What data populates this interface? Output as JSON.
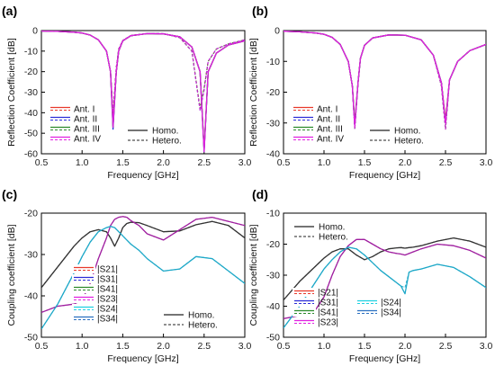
{
  "chart_data": [
    {
      "panel": "(a)",
      "type": "line",
      "xlabel": "Frequency [GHz]",
      "ylabel": "Reflection Coefficient [dB]",
      "xlim": [
        0.5,
        3.0
      ],
      "ylim": [
        -60,
        0
      ],
      "xticks": [
        "0.5",
        "1.0",
        "1.5",
        "2.0",
        "2.5",
        "3.0"
      ],
      "yticks": [
        "0",
        "-10",
        "-20",
        "-30",
        "-40",
        "-50",
        "-60"
      ],
      "legend": [
        "Ant. I",
        "Ant. II",
        "Ant. III",
        "Ant. IV"
      ],
      "style_legend": [
        "Homo.",
        "Hetero."
      ],
      "colors": [
        "#e8392a",
        "#2b2bd6",
        "#2a8a2a",
        "#e020e0"
      ],
      "x": [
        0.5,
        0.7,
        0.9,
        1.0,
        1.1,
        1.2,
        1.3,
        1.35,
        1.38,
        1.42,
        1.45,
        1.5,
        1.6,
        1.8,
        2.0,
        2.2,
        2.35,
        2.45,
        2.5,
        2.55,
        2.65,
        2.8,
        3.0
      ],
      "series": [
        {
          "name": "Ant. I",
          "homo": [
            -0.2,
            -0.4,
            -0.8,
            -1.2,
            -2.2,
            -4.5,
            -10,
            -20,
            -45,
            -20,
            -10,
            -5,
            -2.5,
            -1.5,
            -1.6,
            -3,
            -8,
            -20,
            -58,
            -20,
            -11,
            -7,
            -5
          ],
          "hetero": [
            -0.2,
            -0.4,
            -0.8,
            -1.2,
            -2.2,
            -4.5,
            -10,
            -20,
            -40,
            -18,
            -9,
            -4.8,
            -2.4,
            -1.4,
            -1.5,
            -3.4,
            -10,
            -38,
            -28,
            -15,
            -9,
            -6.5,
            -4.5
          ]
        },
        {
          "name": "Ant. II",
          "homo": [
            -0.2,
            -0.4,
            -0.8,
            -1.2,
            -2.2,
            -4.5,
            -10,
            -20,
            -48,
            -20,
            -10,
            -5,
            -2.5,
            -1.5,
            -1.6,
            -3,
            -8,
            -20,
            -59,
            -20,
            -11,
            -7,
            -5
          ],
          "hetero": [
            -0.2,
            -0.4,
            -0.8,
            -1.2,
            -2.2,
            -4.5,
            -10,
            -20,
            -41,
            -18,
            -9,
            -4.8,
            -2.4,
            -1.4,
            -1.5,
            -3.4,
            -10,
            -39,
            -29,
            -15,
            -9,
            -6.5,
            -4.5
          ]
        },
        {
          "name": "Ant. III",
          "homo": [
            -0.2,
            -0.4,
            -0.8,
            -1.2,
            -2.2,
            -4.5,
            -10,
            -20,
            -47,
            -20,
            -10,
            -5,
            -2.5,
            -1.5,
            -1.6,
            -3,
            -8,
            -20,
            -58,
            -20,
            -11,
            -7,
            -5
          ],
          "hetero": [
            -0.2,
            -0.4,
            -0.8,
            -1.2,
            -2.2,
            -4.5,
            -10,
            -20,
            -40,
            -18,
            -9,
            -4.8,
            -2.4,
            -1.4,
            -1.5,
            -3.4,
            -10,
            -38,
            -28,
            -15,
            -9,
            -6.5,
            -4.5
          ]
        },
        {
          "name": "Ant. IV",
          "homo": [
            -0.2,
            -0.4,
            -0.8,
            -1.2,
            -2.2,
            -4.5,
            -10,
            -20,
            -47,
            -20,
            -10,
            -5,
            -2.5,
            -1.5,
            -1.6,
            -3,
            -8,
            -20,
            -59,
            -20,
            -11,
            -7,
            -5
          ],
          "hetero": [
            -0.2,
            -0.4,
            -0.8,
            -1.2,
            -2.2,
            -4.5,
            -10,
            -20,
            -41,
            -18,
            -9,
            -4.8,
            -2.4,
            -1.4,
            -1.5,
            -3.4,
            -10,
            -39,
            -29,
            -15,
            -9,
            -6.5,
            -4.5
          ]
        }
      ]
    },
    {
      "panel": "(b)",
      "type": "line",
      "xlabel": "Frequency [GHz]",
      "ylabel": "Reflection Coefficient [dB]",
      "xlim": [
        0.5,
        3.0
      ],
      "ylim": [
        -40,
        0
      ],
      "xticks": [
        "0.5",
        "1.0",
        "1.5",
        "2.0",
        "2.5",
        "3.0"
      ],
      "yticks": [
        "0",
        "-10",
        "-20",
        "-30",
        "-40"
      ],
      "legend": [
        "Ant. I",
        "Ant. II",
        "Ant. III",
        "Ant. IV"
      ],
      "style_legend": [
        "Homo.",
        "Hetero."
      ],
      "colors": [
        "#e8392a",
        "#2b2bd6",
        "#2a8a2a",
        "#e020e0"
      ],
      "x": [
        0.5,
        0.7,
        0.9,
        1.0,
        1.1,
        1.2,
        1.3,
        1.35,
        1.38,
        1.42,
        1.45,
        1.5,
        1.6,
        1.8,
        2.0,
        2.2,
        2.35,
        2.45,
        2.5,
        2.55,
        2.65,
        2.8,
        3.0
      ],
      "series": [
        {
          "name": "Ant. I",
          "homo": [
            -0.2,
            -0.4,
            -0.8,
            -1.2,
            -2.2,
            -4.5,
            -10,
            -18,
            -30,
            -17,
            -9,
            -4.8,
            -2.4,
            -1.4,
            -1.5,
            -3,
            -8,
            -17,
            -29,
            -16,
            -10,
            -6.5,
            -4.5
          ],
          "hetero": [
            -0.2,
            -0.4,
            -0.8,
            -1.2,
            -2.2,
            -4.5,
            -10,
            -18,
            -32,
            -17,
            -9,
            -4.8,
            -2.4,
            -1.4,
            -1.5,
            -3,
            -8,
            -18,
            -32,
            -16,
            -10,
            -6.5,
            -4.5
          ]
        },
        {
          "name": "Ant. II",
          "homo": [
            -0.2,
            -0.4,
            -0.8,
            -1.2,
            -2.2,
            -4.5,
            -10,
            -18,
            -31,
            -17,
            -9,
            -4.8,
            -2.4,
            -1.4,
            -1.5,
            -3,
            -8,
            -17,
            -30,
            -16,
            -10,
            -6.5,
            -4.5
          ],
          "hetero": [
            -0.2,
            -0.4,
            -0.8,
            -1.2,
            -2.2,
            -4.5,
            -10,
            -18,
            -32,
            -17,
            -9,
            -4.8,
            -2.4,
            -1.4,
            -1.5,
            -3,
            -8,
            -18,
            -32,
            -16,
            -10,
            -6.5,
            -4.5
          ]
        },
        {
          "name": "Ant. III",
          "homo": [
            -0.2,
            -0.4,
            -0.8,
            -1.2,
            -2.2,
            -4.5,
            -10,
            -18,
            -30,
            -17,
            -9,
            -4.8,
            -2.4,
            -1.4,
            -1.5,
            -3,
            -8,
            -17,
            -30,
            -16,
            -10,
            -6.5,
            -4.5
          ],
          "hetero": [
            -0.2,
            -0.4,
            -0.8,
            -1.2,
            -2.2,
            -4.5,
            -10,
            -18,
            -32,
            -17,
            -9,
            -4.8,
            -2.4,
            -1.4,
            -1.5,
            -3,
            -8,
            -18,
            -32,
            -16,
            -10,
            -6.5,
            -4.5
          ]
        },
        {
          "name": "Ant. IV",
          "homo": [
            -0.2,
            -0.4,
            -0.8,
            -1.2,
            -2.2,
            -4.5,
            -10,
            -18,
            -31,
            -17,
            -9,
            -4.8,
            -2.4,
            -1.4,
            -1.5,
            -3,
            -8,
            -17,
            -30,
            -16,
            -10,
            -6.5,
            -4.5
          ],
          "hetero": [
            -0.2,
            -0.4,
            -0.8,
            -1.2,
            -2.2,
            -4.5,
            -10,
            -18,
            -32,
            -17,
            -9,
            -4.8,
            -2.4,
            -1.4,
            -1.5,
            -3,
            -8,
            -18,
            -32,
            -16,
            -10,
            -6.5,
            -4.5
          ]
        }
      ]
    },
    {
      "panel": "(c)",
      "type": "line",
      "xlabel": "Frequency [GHz]",
      "ylabel": "Coupling coefficient [dB]",
      "xlim": [
        0.5,
        3.0
      ],
      "ylim": [
        -50,
        -20
      ],
      "xticks": [
        "0.5",
        "1.0",
        "1.5",
        "2.0",
        "2.5",
        "3.0"
      ],
      "yticks": [
        "-20",
        "-30",
        "-40",
        "-50"
      ],
      "legend": [
        "|S21|",
        "|S31|",
        "|S41|",
        "|S23|",
        "|S24|",
        "|S34|"
      ],
      "style_legend": [
        "Homo.",
        "Hetero."
      ],
      "x": [
        0.5,
        0.7,
        0.9,
        1.0,
        1.1,
        1.2,
        1.3,
        1.35,
        1.4,
        1.45,
        1.5,
        1.55,
        1.6,
        1.7,
        1.8,
        2.0,
        2.2,
        2.4,
        2.6,
        2.8,
        3.0
      ],
      "series": [
        {
          "name": "dark",
          "color": "#333333",
          "members": [
            "|S21|",
            "|S41|"
          ],
          "homo": [
            -38,
            -33,
            -28,
            -26,
            -24.5,
            -24,
            -24.5,
            -26,
            -28,
            -26,
            -23.5,
            -22.5,
            -22.2,
            -22.3,
            -23,
            -24.5,
            -24.3,
            -22.8,
            -22,
            -23,
            -26
          ],
          "hetero": [
            -38,
            -33,
            -28,
            -26,
            -24.5,
            -24,
            -24.5,
            -26,
            -28,
            -26,
            -23.5,
            -22.5,
            -22.2,
            -22.3,
            -23,
            -24.5,
            -24.3,
            -22.8,
            -22,
            -23,
            -26
          ]
        },
        {
          "name": "magenta",
          "color": "#a020a0",
          "members": [
            "|S31|",
            "|S23|"
          ],
          "homo": [
            -44,
            -42.5,
            -42,
            -41,
            -37,
            -31,
            -26,
            -23,
            -21.5,
            -21,
            -20.8,
            -21,
            -21.8,
            -23,
            -25,
            -26.5,
            -24,
            -21.5,
            -21,
            -22,
            -23
          ],
          "hetero": [
            -44,
            -42.5,
            -42,
            -41,
            -37,
            -31,
            -26,
            -23,
            -21.5,
            -21,
            -20.8,
            -21,
            -21.8,
            -23,
            -25,
            -26.5,
            -24,
            -21.5,
            -21,
            -22,
            -23
          ]
        },
        {
          "name": "cyan",
          "color": "#1ea8c8",
          "members": [
            "|S24|",
            "|S34|"
          ],
          "homo": [
            -48,
            -42,
            -34.5,
            -30.5,
            -27,
            -24.5,
            -23.5,
            -23.2,
            -23.5,
            -24.5,
            -25.5,
            -26.5,
            -27.5,
            -29,
            -31,
            -34,
            -33.5,
            -30.5,
            -31,
            -34,
            -37
          ],
          "hetero": [
            -48,
            -42,
            -34.5,
            -30.5,
            -27,
            -24.5,
            -23.5,
            -23.2,
            -23.5,
            -24.5,
            -25.5,
            -26.5,
            -27.5,
            -29,
            -31,
            -34,
            -33.5,
            -30.5,
            -31,
            -34,
            -37
          ]
        }
      ]
    },
    {
      "panel": "(d)",
      "type": "line",
      "xlabel": "Frequency [GHz]",
      "ylabel": "Coupling coefficient [dB]",
      "xlim": [
        0.5,
        3.0
      ],
      "ylim": [
        -50,
        -10
      ],
      "xticks": [
        "0.5",
        "1.0",
        "1.5",
        "2.0",
        "2.5",
        "3.0"
      ],
      "yticks": [
        "-10",
        "-20",
        "-30",
        "-40",
        "-50"
      ],
      "legend": [
        "|S21|",
        "|S31|",
        "|S41|",
        "|S23|",
        "|S24|",
        "|S34|"
      ],
      "style_legend": [
        "Homo.",
        "Hetero."
      ],
      "x": [
        0.5,
        0.7,
        0.9,
        1.0,
        1.1,
        1.2,
        1.3,
        1.4,
        1.5,
        1.6,
        1.7,
        1.8,
        1.9,
        1.95,
        2.0,
        2.05,
        2.1,
        2.2,
        2.4,
        2.6,
        2.8,
        3.0
      ],
      "series": [
        {
          "name": "dark",
          "color": "#333333",
          "members": [
            "|S21|",
            "|S41|"
          ],
          "homo": [
            -38,
            -32,
            -27,
            -24.5,
            -22.5,
            -21.5,
            -21.5,
            -23.5,
            -25,
            -24,
            -22.5,
            -21.5,
            -21.2,
            -21.1,
            -21.3,
            -21.1,
            -21,
            -20.5,
            -19,
            -18,
            -19,
            -21
          ],
          "hetero": [
            -38,
            -32,
            -27,
            -24.5,
            -22.5,
            -21.5,
            -21.5,
            -23.5,
            -25,
            -24,
            -22.5,
            -21.5,
            -21.2,
            -21.1,
            -21.3,
            -21.1,
            -21,
            -20.5,
            -19,
            -18,
            -19,
            -21
          ]
        },
        {
          "name": "magenta",
          "color": "#a020a0",
          "members": [
            "|S31|",
            "|S23|"
          ],
          "homo": [
            -44,
            -43,
            -41,
            -37,
            -30,
            -24,
            -20.5,
            -18.5,
            -18.5,
            -20,
            -21.5,
            -22.5,
            -23,
            -23.2,
            -23.5,
            -23,
            -22.5,
            -21.5,
            -20,
            -20.5,
            -22,
            -24.5
          ],
          "hetero": [
            -44,
            -43,
            -41,
            -37,
            -30,
            -24,
            -20.5,
            -18.5,
            -18.5,
            -20,
            -21.5,
            -22.5,
            -23,
            -23.2,
            -23.5,
            -23,
            -22.5,
            -21.5,
            -20,
            -20.5,
            -22,
            -24.5
          ]
        },
        {
          "name": "cyan",
          "color": "#1ea8c8",
          "members": [
            "|S24|",
            "|S34|"
          ],
          "homo": [
            -47,
            -40,
            -32,
            -28,
            -25,
            -22.5,
            -21,
            -21.5,
            -23.5,
            -26,
            -28.5,
            -30.5,
            -32.5,
            -33.5,
            -36,
            -29,
            -28.5,
            -28,
            -26.5,
            -27.5,
            -30.5,
            -34
          ],
          "hetero": [
            -47,
            -40,
            -32,
            -28,
            -25,
            -22.5,
            -21,
            -21.5,
            -23.5,
            -26,
            -28.5,
            -30.5,
            -32.5,
            -33.5,
            -34,
            -29,
            -28.5,
            -28,
            -26.5,
            -27.5,
            -30.5,
            -34
          ]
        }
      ]
    }
  ]
}
